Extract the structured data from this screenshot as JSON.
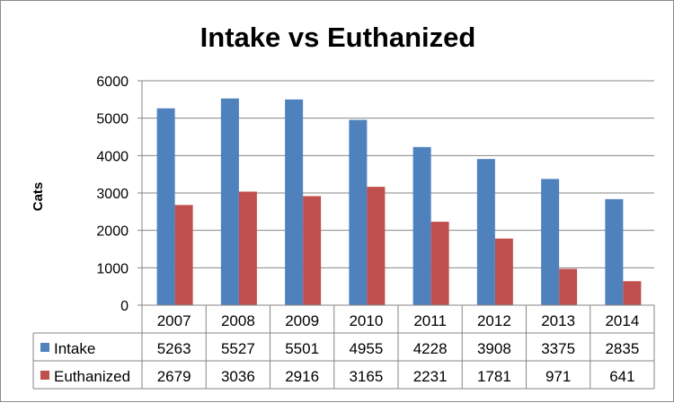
{
  "chart_data": {
    "type": "bar",
    "title": "Intake vs Euthanized",
    "ylabel": "Cats",
    "xlabel": "",
    "ylim": [
      0,
      6000
    ],
    "yticks": [
      0,
      1000,
      2000,
      3000,
      4000,
      5000,
      6000
    ],
    "grid": true,
    "legend": "data-table",
    "categories": [
      "2007",
      "2008",
      "2009",
      "2010",
      "2011",
      "2012",
      "2013",
      "2014"
    ],
    "series": [
      {
        "name": "Intake",
        "color": "#4F81BD",
        "values": [
          5263,
          5527,
          5501,
          4955,
          4228,
          3908,
          3375,
          2835
        ]
      },
      {
        "name": "Euthanized",
        "color": "#C0504D",
        "values": [
          2679,
          3036,
          2916,
          3165,
          2231,
          1781,
          971,
          641
        ]
      }
    ]
  }
}
